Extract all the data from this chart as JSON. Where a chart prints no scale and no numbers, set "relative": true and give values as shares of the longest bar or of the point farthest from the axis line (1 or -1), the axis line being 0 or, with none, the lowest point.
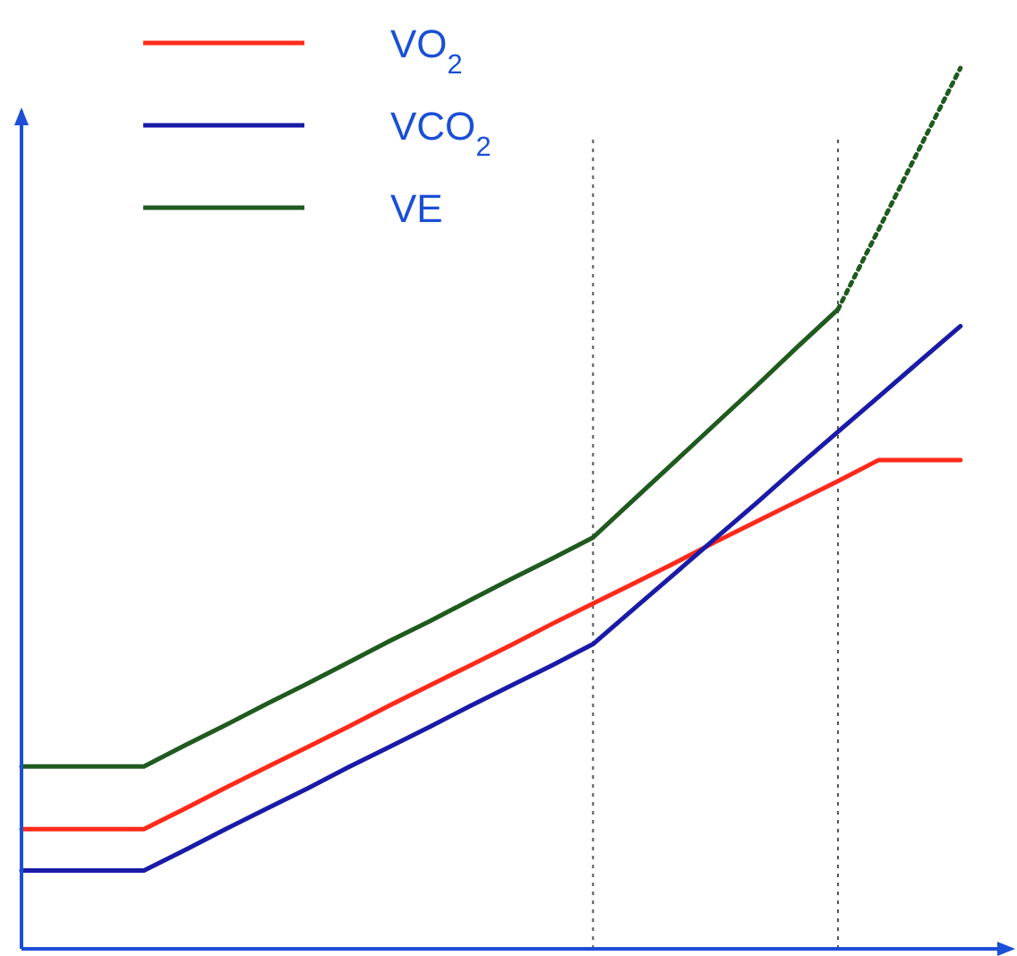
{
  "chart_data": {
    "type": "line",
    "relative": true,
    "legend": "top left",
    "categories": [
      null,
      null,
      null,
      null,
      null,
      null,
      null,
      null,
      null,
      null,
      null,
      null,
      null,
      null,
      null,
      null,
      null,
      null,
      null,
      null,
      null,
      null,
      null,
      null
    ],
    "series": [
      {
        "name": "VO$_{2}$",
        "color": "#ff2a1a",
        "values": [
          0.136,
          0.136,
          0.136,
          0.136,
          0.159,
          0.183,
          0.206,
          0.229,
          0.252,
          0.276,
          0.299,
          0.322,
          0.345,
          0.369,
          0.392,
          0.415,
          0.438,
          0.462,
          0.485,
          0.508,
          0.531,
          0.555,
          0.555,
          0.555
        ]
      },
      {
        "name": "VCO$_{2}$",
        "color": "#1a1aa8",
        "values": [
          0.089,
          0.089,
          0.089,
          0.089,
          0.112,
          0.136,
          0.159,
          0.182,
          0.206,
          0.229,
          0.252,
          0.276,
          0.299,
          0.322,
          0.346,
          0.386,
          0.426,
          0.466,
          0.506,
          0.547,
          0.587,
          0.627,
          0.667,
          0.707
        ]
      },
      {
        "name": "VE",
        "color": "#1f5a1f",
        "values": [
          0.207,
          0.207,
          0.207,
          0.207,
          0.231,
          0.254,
          0.278,
          0.301,
          0.325,
          0.349,
          0.372,
          0.396,
          0.42,
          0.443,
          0.467,
          0.51,
          0.553,
          0.596,
          0.639,
          0.683,
          0.726,
          null,
          null,
          null
        ]
      },
      {
        "color": "#1f5a1f",
        "line_style": "dotted",
        "values": [
          null,
          null,
          null,
          null,
          null,
          null,
          null,
          null,
          null,
          null,
          null,
          null,
          null,
          null,
          null,
          null,
          null,
          null,
          null,
          null,
          0.726,
          0.817,
          0.909,
          1
        ]
      }
    ]
  }
}
